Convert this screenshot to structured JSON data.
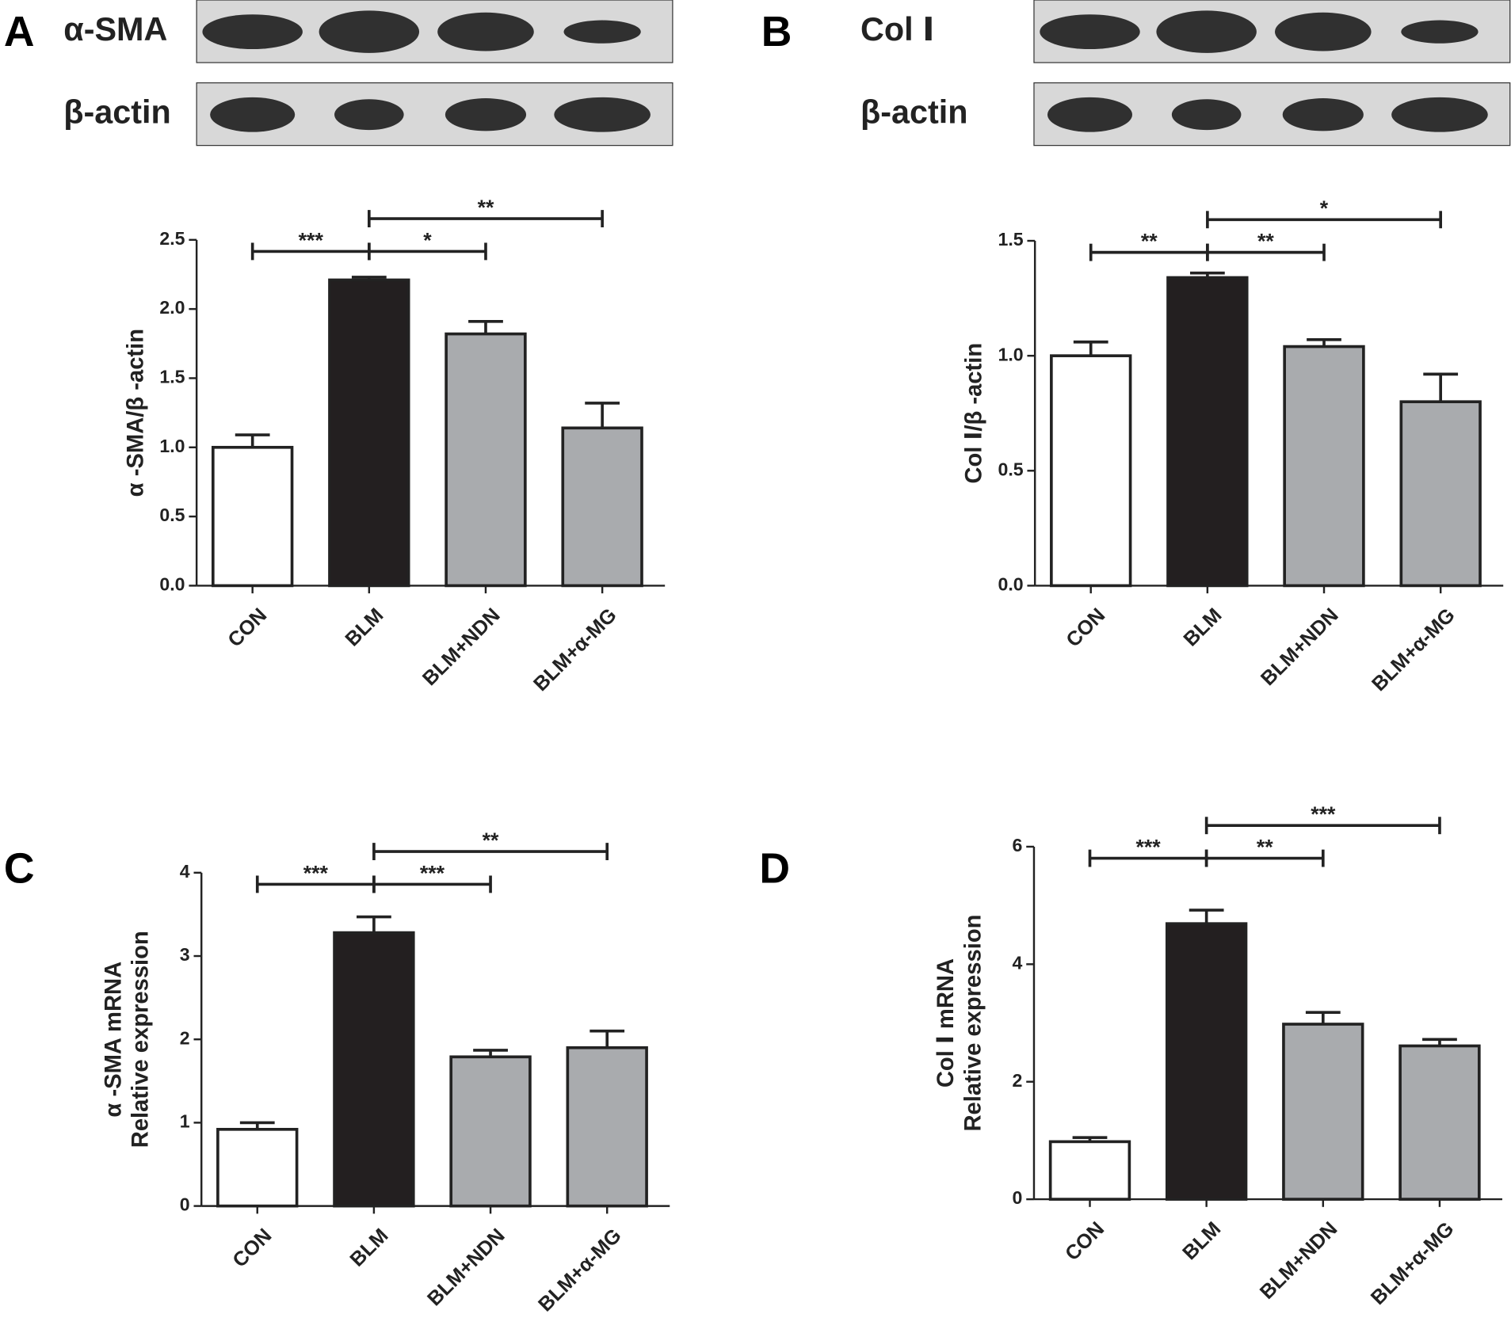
{
  "chart_data": [
    {
      "type": "bar",
      "panel": "A",
      "blots": [
        "α-SMA",
        "β-actin"
      ],
      "ylabel": [
        "α -SMA/β -actin"
      ],
      "categories": [
        "CON",
        "BLM",
        "BLM+NDN",
        "BLM+α-MG"
      ],
      "values": [
        1.0,
        2.21,
        1.82,
        1.14
      ],
      "errors": [
        0.09,
        0.02,
        0.09,
        0.18
      ],
      "colors": [
        "#ffffff",
        "#231f20",
        "#a9abae",
        "#a9abae"
      ],
      "ylim": [
        0,
        2.5
      ],
      "yticks": [
        {
          "value": 0,
          "label": "0.0"
        },
        0.5,
        {
          "value": 1,
          "label": "1.0"
        },
        1.5,
        {
          "value": 2,
          "label": "2.0"
        },
        2.5
      ],
      "significance": [
        {
          "from": 0,
          "to": 1,
          "label": "***"
        },
        {
          "from": 1,
          "to": 2,
          "label": "*"
        },
        {
          "from": 1,
          "to": 3,
          "label": "**"
        }
      ]
    },
    {
      "type": "bar",
      "panel": "B",
      "blots": [
        "Col Ⅰ",
        "β-actin"
      ],
      "ylabel": [
        "Col Ⅰ/β -actin"
      ],
      "categories": [
        "CON",
        "BLM",
        "BLM+NDN",
        "BLM+α-MG"
      ],
      "values": [
        1.0,
        1.34,
        1.04,
        0.8
      ],
      "errors": [
        0.06,
        0.02,
        0.03,
        0.12
      ],
      "colors": [
        "#ffffff",
        "#231f20",
        "#a9abae",
        "#a9abae"
      ],
      "ylim": [
        0,
        1.5
      ],
      "yticks": [
        {
          "value": 0,
          "label": "0.0"
        },
        0.5,
        {
          "value": 1,
          "label": "1.0"
        },
        1.5
      ],
      "significance": [
        {
          "from": 0,
          "to": 1,
          "label": "**"
        },
        {
          "from": 1,
          "to": 2,
          "label": "**"
        },
        {
          "from": 1,
          "to": 3,
          "label": "*"
        }
      ]
    },
    {
      "type": "bar",
      "panel": "C",
      "ylabel": [
        "α -SMA mRNA",
        "Relative expression"
      ],
      "categories": [
        "CON",
        "BLM",
        "BLM+NDN",
        "BLM+α-MG"
      ],
      "values": [
        0.92,
        3.28,
        1.79,
        1.9
      ],
      "errors": [
        0.08,
        0.19,
        0.08,
        0.2
      ],
      "colors": [
        "#ffffff",
        "#231f20",
        "#a9abae",
        "#a9abae"
      ],
      "ylim": [
        0,
        4
      ],
      "yticks": [
        0,
        1,
        2,
        3,
        4
      ],
      "significance": [
        {
          "from": 0,
          "to": 1,
          "label": "***"
        },
        {
          "from": 1,
          "to": 2,
          "label": "***"
        },
        {
          "from": 1,
          "to": 3,
          "label": "**"
        }
      ]
    },
    {
      "type": "bar",
      "panel": "D",
      "ylabel": [
        "Col Ⅰ mRNA",
        "Relative expression"
      ],
      "categories": [
        "CON",
        "BLM",
        "BLM+NDN",
        "BLM+α-MG"
      ],
      "values": [
        0.98,
        4.69,
        2.98,
        2.61
      ],
      "errors": [
        0.07,
        0.23,
        0.2,
        0.11
      ],
      "colors": [
        "#ffffff",
        "#231f20",
        "#a9abae",
        "#a9abae"
      ],
      "ylim": [
        0,
        6
      ],
      "yticks": [
        0,
        2,
        4,
        6
      ],
      "significance": [
        {
          "from": 0,
          "to": 1,
          "label": "***"
        },
        {
          "from": 1,
          "to": 2,
          "label": "**"
        },
        {
          "from": 1,
          "to": 3,
          "label": "***"
        }
      ]
    }
  ]
}
